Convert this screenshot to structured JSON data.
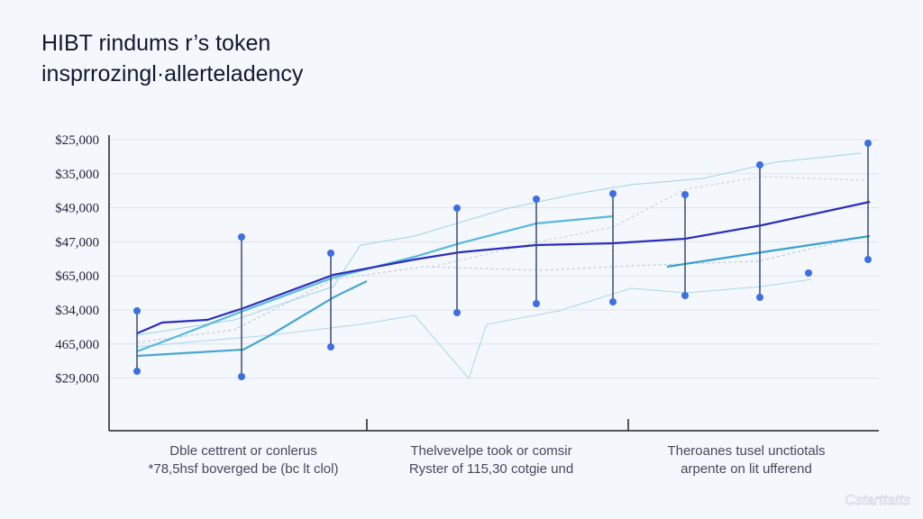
{
  "header": {
    "title_lines": [
      "HIBT rindums r’s token",
      "insprrozingl·allerteladency"
    ]
  },
  "y_axis_labels": [
    "$25,000",
    "$35,000",
    "$49,000",
    "$47,000",
    "$65,000",
    "$34,000",
    "465,000",
    "$29,000"
  ],
  "captions": [
    [
      "Dble cettrent or conlerus",
      "*78,5hsf boverged be (bc lt clol)"
    ],
    [
      "Thelvevelpe took or comsir",
      "Ryster of 115,30 cotgie und"
    ],
    [
      "Theroanes tusel unctiotals",
      "arpente on lit ufferend"
    ]
  ],
  "watermark": "Cstarttatts"
}
